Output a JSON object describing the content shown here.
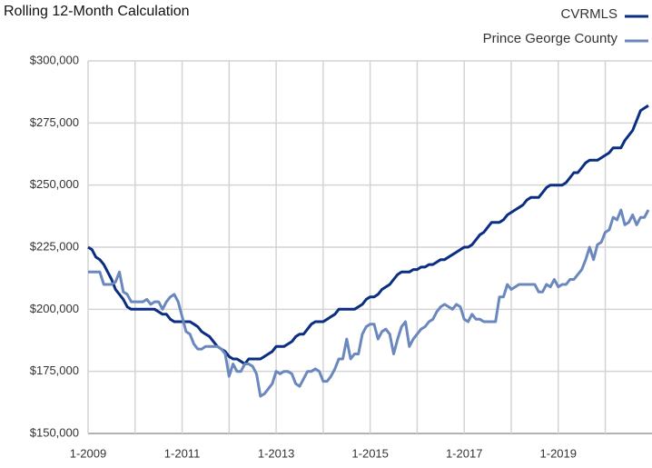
{
  "chart_data": {
    "type": "line",
    "title": "Rolling 12-Month Calculation",
    "categories": [
      "1-2009",
      null,
      null,
      null,
      null,
      null,
      null,
      null,
      null,
      null,
      null,
      null,
      null,
      null,
      null,
      null,
      null,
      null,
      null,
      null,
      null,
      null,
      null,
      null,
      "1-2011",
      null,
      null,
      null,
      null,
      null,
      null,
      null,
      null,
      null,
      null,
      null,
      null,
      null,
      null,
      null,
      null,
      null,
      null,
      null,
      null,
      null,
      null,
      null,
      "1-2013",
      null,
      null,
      null,
      null,
      null,
      null,
      null,
      null,
      null,
      null,
      null,
      null,
      null,
      null,
      null,
      null,
      null,
      null,
      null,
      null,
      null,
      null,
      null,
      "1-2015",
      null,
      null,
      null,
      null,
      null,
      null,
      null,
      null,
      null,
      null,
      null,
      null,
      null,
      null,
      null,
      null,
      null,
      null,
      null,
      null,
      null,
      null,
      null,
      "1-2017",
      null,
      null,
      null,
      null,
      null,
      null,
      null,
      null,
      null,
      null,
      null,
      null,
      null,
      null,
      null,
      null,
      null,
      null,
      null,
      null,
      null,
      null,
      null,
      "1-2019",
      null,
      null,
      null,
      null,
      null,
      null,
      null,
      null,
      null,
      null,
      null,
      null,
      null,
      null,
      null,
      null,
      null,
      null,
      null,
      null,
      null,
      null,
      null
    ],
    "series": [
      {
        "name": "CVRMLS",
        "color": "#0b2d82",
        "values": [
          225000,
          224000,
          221000,
          220000,
          218000,
          215000,
          212000,
          208000,
          206000,
          204000,
          201000,
          200000,
          200000,
          200000,
          200000,
          200000,
          200000,
          200000,
          199000,
          198000,
          198000,
          196000,
          195000,
          195000,
          195000,
          195000,
          195000,
          194000,
          193000,
          191000,
          190000,
          189000,
          187000,
          185000,
          184000,
          183000,
          181000,
          180000,
          180000,
          179000,
          178000,
          180000,
          180000,
          180000,
          180000,
          181000,
          182000,
          183000,
          185000,
          185000,
          185000,
          186000,
          187000,
          189000,
          190000,
          190000,
          192000,
          194000,
          195000,
          195000,
          195000,
          196000,
          197000,
          198000,
          200000,
          200000,
          200000,
          200000,
          200000,
          201000,
          202000,
          204000,
          205000,
          205000,
          206000,
          208000,
          209000,
          210000,
          212000,
          214000,
          215000,
          215000,
          215000,
          216000,
          216000,
          217000,
          217000,
          218000,
          218000,
          219000,
          220000,
          220000,
          221000,
          222000,
          223000,
          224000,
          225000,
          225000,
          226000,
          228000,
          230000,
          231000,
          233000,
          235000,
          235000,
          235000,
          236000,
          238000,
          239000,
          240000,
          241000,
          242000,
          244000,
          245000,
          245000,
          245000,
          247000,
          249000,
          250000,
          250000,
          250000,
          250000,
          251000,
          253000,
          255000,
          255000,
          257000,
          259000,
          260000,
          260000,
          260000,
          261000,
          262000,
          263000,
          265000,
          265000,
          265000,
          268000,
          270000,
          272000,
          276000,
          280000,
          281000,
          282000
        ]
      },
      {
        "name": "Prince George County",
        "color": "#6a88bd",
        "values": [
          215000,
          215000,
          215000,
          215000,
          210000,
          210000,
          210000,
          211000,
          215000,
          207000,
          206000,
          203000,
          203000,
          203000,
          203000,
          204000,
          202000,
          203000,
          203000,
          200000,
          203000,
          205000,
          206000,
          203000,
          197000,
          191000,
          190000,
          186000,
          184000,
          184000,
          185000,
          185000,
          185000,
          185000,
          184000,
          182000,
          173000,
          178000,
          175000,
          175000,
          178000,
          178000,
          177000,
          174000,
          165000,
          166000,
          168000,
          170000,
          175000,
          174000,
          175000,
          175000,
          174000,
          170000,
          169000,
          172000,
          175000,
          175000,
          176000,
          175000,
          171000,
          171000,
          173000,
          176000,
          180000,
          180000,
          188000,
          180000,
          182000,
          182000,
          190000,
          193000,
          194000,
          194000,
          188000,
          191000,
          192000,
          190000,
          182000,
          188000,
          193000,
          195000,
          185000,
          188000,
          190000,
          192000,
          193000,
          195000,
          196000,
          199000,
          201000,
          202000,
          201000,
          200000,
          202000,
          201000,
          196000,
          195000,
          198000,
          196000,
          196000,
          195000,
          195000,
          195000,
          195000,
          205000,
          205000,
          210000,
          208000,
          209000,
          210000,
          210000,
          210000,
          210000,
          210000,
          207000,
          207000,
          210000,
          209000,
          212000,
          209000,
          210000,
          210000,
          212000,
          212000,
          214000,
          216000,
          220000,
          225000,
          220000,
          226000,
          227000,
          231000,
          232000,
          237000,
          236000,
          240000,
          234000,
          235000,
          238000,
          234000,
          237000,
          237000,
          240000
        ]
      }
    ],
    "ylim": [
      150000,
      300000
    ],
    "yticks": [
      {
        "value": 150000,
        "label": "$150,000"
      },
      {
        "value": 175000,
        "label": "$175,000"
      },
      {
        "value": 200000,
        "label": "$200,000"
      },
      {
        "value": 225000,
        "label": "$225,000"
      },
      {
        "value": 250000,
        "label": "$250,000"
      },
      {
        "value": 275000,
        "label": "$275,000"
      },
      {
        "value": 300000,
        "label": "$300,000"
      }
    ],
    "grid": true,
    "legend": "top-right"
  }
}
